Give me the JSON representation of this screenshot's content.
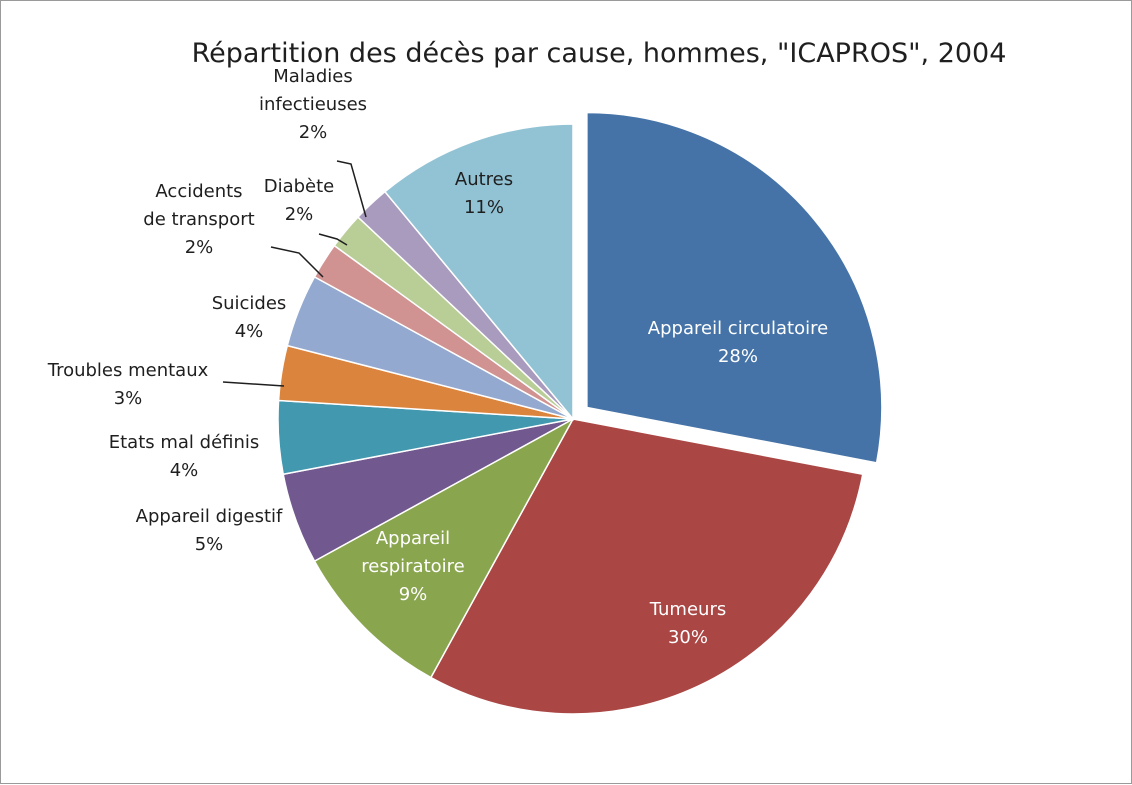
{
  "chart_data": {
    "type": "pie",
    "title": "Répartition des décès par cause, hommes, \"ICAPROS\", 2004",
    "slices": [
      {
        "label_lines": [
          "Appareil circulatoire"
        ],
        "pct_text": "28%",
        "value": 28,
        "color": "#4573A7",
        "text_color": "#ffffff",
        "exploded": true
      },
      {
        "label_lines": [
          "Tumeurs"
        ],
        "pct_text": "30%",
        "value": 30,
        "color": "#AA4644",
        "text_color": "#ffffff",
        "exploded": false
      },
      {
        "label_lines": [
          "Appareil",
          "respiratoire"
        ],
        "pct_text": "9%",
        "value": 9,
        "color": "#89A54E",
        "text_color": "#ffffff",
        "exploded": false
      },
      {
        "label_lines": [
          "Appareil digestif"
        ],
        "pct_text": "5%",
        "value": 5,
        "color": "#71588F",
        "text_color": "#1f1f1f",
        "exploded": false
      },
      {
        "label_lines": [
          "Etats mal définis"
        ],
        "pct_text": "4%",
        "value": 4,
        "color": "#4298AF",
        "text_color": "#1f1f1f",
        "exploded": false
      },
      {
        "label_lines": [
          "Troubles mentaux"
        ],
        "pct_text": "3%",
        "value": 3,
        "color": "#DB843D",
        "text_color": "#1f1f1f",
        "exploded": false
      },
      {
        "label_lines": [
          "Suicides"
        ],
        "pct_text": "4%",
        "value": 4,
        "color": "#93A9CF",
        "text_color": "#1f1f1f",
        "exploded": false
      },
      {
        "label_lines": [
          "Accidents",
          "de transport"
        ],
        "pct_text": "2%",
        "value": 2,
        "color": "#D19392",
        "text_color": "#1f1f1f",
        "exploded": false
      },
      {
        "label_lines": [
          "Diabète"
        ],
        "pct_text": "2%",
        "value": 2,
        "color": "#B9CD96",
        "text_color": "#1f1f1f",
        "exploded": false
      },
      {
        "label_lines": [
          "Maladies",
          "infectieuses"
        ],
        "pct_text": "2%",
        "value": 2,
        "color": "#A99BBD",
        "text_color": "#1f1f1f",
        "exploded": false
      },
      {
        "label_lines": [
          "Autres"
        ],
        "pct_text": "11%",
        "value": 11,
        "color": "#92C3D4",
        "text_color": "#1f1f1f",
        "exploded": false
      }
    ]
  }
}
